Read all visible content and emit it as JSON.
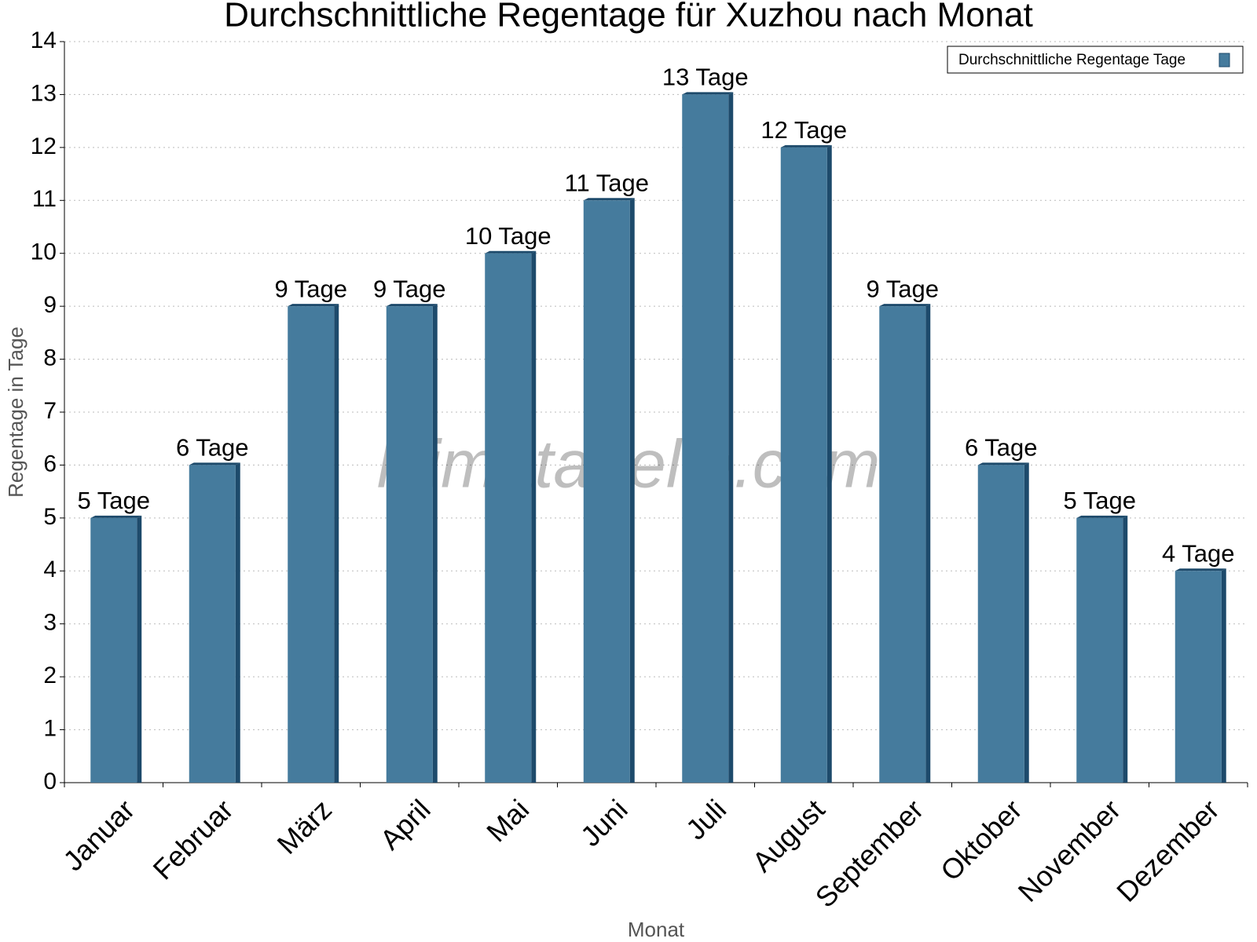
{
  "chart_data": {
    "type": "bar",
    "title": "Durchschnittliche Regentage für Xuzhou nach Monat",
    "x_label": "Monat",
    "y_label": "Regentage in Tage",
    "watermark": "klimatabelle.com",
    "categories": [
      "Januar",
      "Februar",
      "März",
      "April",
      "Mai",
      "Juni",
      "Juli",
      "August",
      "September",
      "Oktober",
      "November",
      "Dezember"
    ],
    "series": [
      {
        "name": "Durchschnittliche Regentage Tage",
        "color": "#457b9d",
        "values": [
          5,
          6,
          9,
          9,
          10,
          11,
          13,
          12,
          9,
          6,
          5,
          4
        ],
        "value_labels": [
          "5 Tage",
          "6 Tage",
          "9 Tage",
          "9 Tage",
          "10 Tage",
          "11 Tage",
          "13 Tage",
          "12 Tage",
          "9 Tage",
          "6 Tage",
          "5 Tage",
          "4 Tage"
        ]
      }
    ],
    "ylim": [
      0,
      14
    ],
    "yticks": [
      0,
      1,
      2,
      3,
      4,
      5,
      6,
      7,
      8,
      9,
      10,
      11,
      12,
      13,
      14
    ],
    "grid": true,
    "legend": "top-right"
  }
}
